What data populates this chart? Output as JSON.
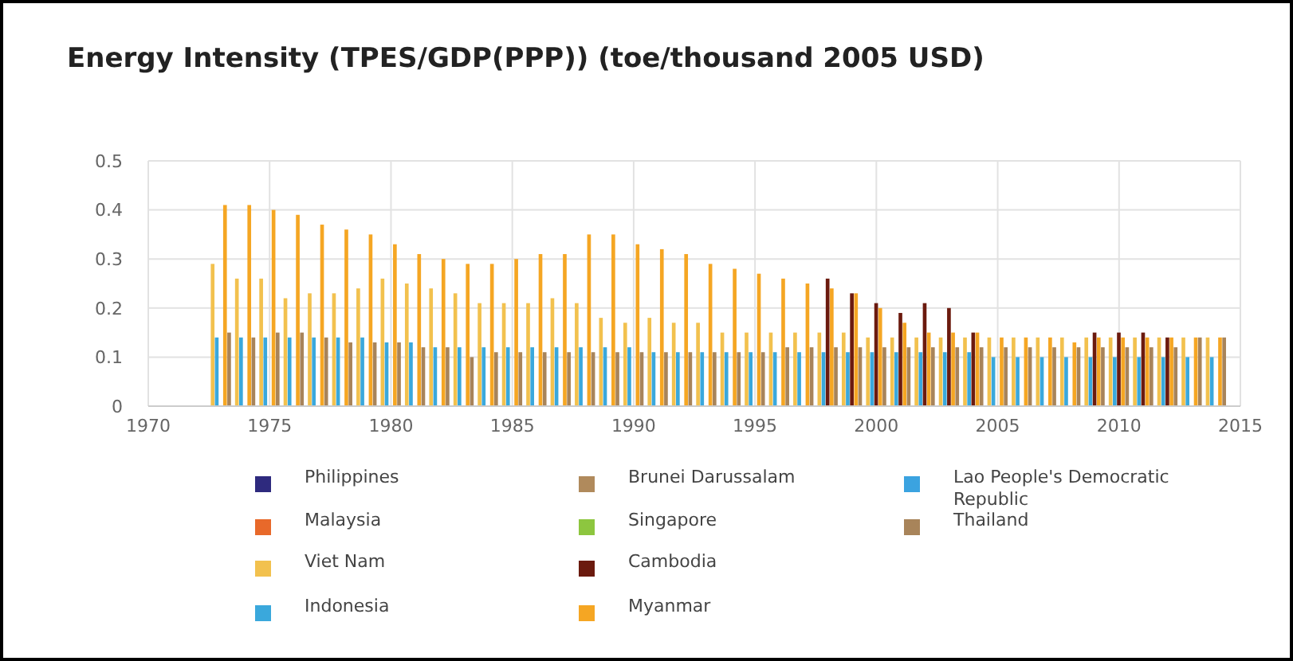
{
  "chart_data": {
    "type": "bar",
    "title": "Energy Intensity (TPES/GDP(PPP)) (toe/thousand 2005 USD)",
    "x": [
      1973,
      1974,
      1975,
      1976,
      1977,
      1978,
      1979,
      1980,
      1981,
      1982,
      1983,
      1984,
      1985,
      1986,
      1987,
      1988,
      1989,
      1990,
      1991,
      1992,
      1993,
      1994,
      1995,
      1996,
      1997,
      1998,
      1999,
      2000,
      2001,
      2002,
      2003,
      2004,
      2005,
      2006,
      2007,
      2008,
      2009,
      2010,
      2011,
      2012,
      2013,
      2014
    ],
    "xlim": [
      1970,
      2015
    ],
    "xticks": [
      1970,
      1975,
      1980,
      1985,
      1990,
      1995,
      2000,
      2005,
      2010,
      2015
    ],
    "ylim": [
      0,
      0.5
    ],
    "yticks": [
      0,
      0.1,
      0.2,
      0.3,
      0.4,
      0.5
    ],
    "grid": true,
    "legend": "bottom",
    "series": [
      {
        "name": "Philippines",
        "color": "#2e2a7e",
        "values": [
          null,
          null,
          null,
          null,
          null,
          null,
          null,
          null,
          null,
          null,
          null,
          null,
          null,
          null,
          null,
          null,
          null,
          null,
          null,
          null,
          null,
          null,
          null,
          null,
          null,
          null,
          null,
          null,
          null,
          null,
          null,
          null,
          null,
          null,
          null,
          null,
          null,
          null,
          null,
          null,
          null,
          null
        ]
      },
      {
        "name": "Malaysia",
        "color": "#e8692a",
        "values": [
          null,
          null,
          null,
          null,
          null,
          null,
          null,
          null,
          null,
          null,
          null,
          null,
          null,
          null,
          null,
          null,
          null,
          null,
          null,
          null,
          null,
          null,
          null,
          null,
          null,
          null,
          null,
          null,
          null,
          null,
          null,
          null,
          null,
          null,
          null,
          null,
          null,
          null,
          null,
          null,
          null,
          null
        ]
      },
      {
        "name": "Viet Nam",
        "color": "#f2c14e",
        "values": [
          0.29,
          0.26,
          0.26,
          0.22,
          0.23,
          0.23,
          0.24,
          0.26,
          0.25,
          0.24,
          0.23,
          0.21,
          0.21,
          0.21,
          0.22,
          0.21,
          0.18,
          0.17,
          0.18,
          0.17,
          0.17,
          0.15,
          0.15,
          0.15,
          0.15,
          0.15,
          0.15,
          0.14,
          0.14,
          0.14,
          0.14,
          0.14,
          0.14,
          0.14,
          0.14,
          0.14,
          0.14,
          0.14,
          0.14,
          0.14,
          0.14,
          0.14
        ]
      },
      {
        "name": "Indonesia",
        "color": "#3aa8dc",
        "values": [
          0.14,
          0.14,
          0.14,
          0.14,
          0.14,
          0.14,
          0.14,
          0.13,
          0.13,
          0.12,
          0.12,
          0.12,
          0.12,
          0.12,
          0.12,
          0.12,
          0.12,
          0.12,
          0.11,
          0.11,
          0.11,
          0.11,
          0.11,
          0.11,
          0.11,
          0.11,
          0.11,
          0.11,
          0.11,
          0.11,
          0.11,
          0.11,
          0.1,
          0.1,
          0.1,
          0.1,
          0.1,
          0.1,
          0.1,
          0.1,
          0.1,
          0.1
        ]
      },
      {
        "name": "Brunei Darussalam",
        "color": "#b08a5c",
        "values": [
          null,
          null,
          null,
          null,
          null,
          null,
          null,
          null,
          null,
          null,
          null,
          null,
          null,
          null,
          null,
          null,
          null,
          null,
          null,
          null,
          null,
          null,
          null,
          null,
          null,
          null,
          null,
          null,
          null,
          null,
          null,
          null,
          null,
          null,
          null,
          null,
          null,
          null,
          null,
          null,
          null,
          null
        ]
      },
      {
        "name": "Singapore",
        "color": "#8dc63f",
        "values": [
          null,
          null,
          null,
          null,
          null,
          null,
          null,
          null,
          null,
          null,
          null,
          null,
          null,
          null,
          null,
          null,
          null,
          null,
          null,
          null,
          null,
          null,
          null,
          null,
          null,
          null,
          null,
          null,
          null,
          null,
          null,
          null,
          null,
          null,
          null,
          null,
          null,
          null,
          null,
          null,
          null,
          null
        ]
      },
      {
        "name": "Cambodia",
        "color": "#6b1a0e",
        "values": [
          null,
          null,
          null,
          null,
          null,
          null,
          null,
          null,
          null,
          null,
          null,
          null,
          null,
          null,
          null,
          null,
          null,
          null,
          null,
          null,
          null,
          null,
          null,
          null,
          null,
          0.26,
          0.23,
          0.21,
          0.19,
          0.21,
          0.2,
          0.15,
          null,
          null,
          null,
          null,
          0.15,
          0.15,
          0.15,
          0.14,
          null,
          null
        ]
      },
      {
        "name": "Myanmar",
        "color": "#f5a623",
        "values": [
          0.41,
          0.41,
          0.4,
          0.39,
          0.37,
          0.36,
          0.35,
          0.33,
          0.31,
          0.3,
          0.29,
          0.29,
          0.3,
          0.31,
          0.31,
          0.35,
          0.35,
          0.33,
          0.32,
          0.31,
          0.29,
          0.28,
          0.27,
          0.26,
          0.25,
          0.24,
          0.23,
          0.2,
          0.17,
          0.15,
          0.15,
          0.15,
          0.14,
          0.14,
          0.14,
          0.13,
          0.14,
          0.14,
          0.14,
          0.14,
          0.14,
          0.14
        ]
      },
      {
        "name": "Lao People's Democratic Republic",
        "color": "#3ba3e0",
        "values": [
          null,
          null,
          null,
          null,
          null,
          null,
          null,
          null,
          null,
          null,
          null,
          null,
          null,
          null,
          null,
          null,
          null,
          null,
          null,
          null,
          null,
          null,
          null,
          null,
          null,
          null,
          null,
          null,
          null,
          null,
          null,
          null,
          null,
          null,
          null,
          null,
          null,
          null,
          null,
          null,
          null,
          null
        ]
      },
      {
        "name": "Thailand",
        "color": "#a8845a",
        "values": [
          0.15,
          0.14,
          0.15,
          0.15,
          0.14,
          0.13,
          0.13,
          0.13,
          0.12,
          0.12,
          0.1,
          0.11,
          0.11,
          0.11,
          0.11,
          0.11,
          0.11,
          0.11,
          0.11,
          0.11,
          0.11,
          0.11,
          0.11,
          0.12,
          0.12,
          0.12,
          0.12,
          0.12,
          0.12,
          0.12,
          0.12,
          0.12,
          0.12,
          0.12,
          0.12,
          0.12,
          0.12,
          0.12,
          0.12,
          0.12,
          0.14,
          0.14
        ]
      }
    ]
  }
}
